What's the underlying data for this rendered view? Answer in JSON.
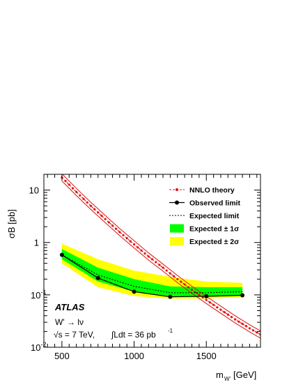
{
  "chart_data": {
    "type": "line",
    "title": "",
    "xlabel": "m_{W'} [GeV]",
    "ylabel": "σB [pb]",
    "xlim": [
      375,
      1875
    ],
    "ylim": [
      0.01,
      20
    ],
    "yscale": "log",
    "xticks": [
      500,
      1000,
      1500
    ],
    "yticks": [
      0.01,
      0.1,
      1,
      10
    ],
    "grid": false,
    "legend_position": "top-right",
    "annotations": {
      "experiment": "ATLAS",
      "process": "W' → lν",
      "energy": "√s = 7 TeV,",
      "lumi": "∫Ldt = 36 pb"
    },
    "series": [
      {
        "name": "NNLO theory",
        "style": "dashed-with-points",
        "color": "#e01010",
        "x": [
          500,
          600,
          700,
          800,
          900,
          1000,
          1100,
          1200,
          1300,
          1400,
          1500,
          1600,
          1700,
          1800,
          1875
        ],
        "values": [
          17.5,
          9.2,
          5.0,
          2.8,
          1.58,
          0.92,
          0.54,
          0.33,
          0.2,
          0.125,
          0.08,
          0.052,
          0.034,
          0.023,
          0.0175
        ],
        "band_factor": 1.17
      },
      {
        "name": "Observed limit",
        "style": "solid-with-points",
        "color": "#000000",
        "x": [
          500,
          750,
          1000,
          1250,
          1500,
          1750
        ],
        "values": [
          0.58,
          0.21,
          0.115,
          0.092,
          0.094,
          0.098
        ]
      },
      {
        "name": "Expected  limit",
        "style": "dotted",
        "color": "#000000",
        "x": [
          500,
          750,
          1000,
          1250,
          1500,
          1750
        ],
        "values": [
          0.58,
          0.24,
          0.145,
          0.11,
          0.11,
          0.115
        ]
      },
      {
        "name": "Expected ± 1σ",
        "style": "band",
        "color": "#00ff00",
        "x": [
          500,
          750,
          1000,
          1250,
          1500,
          1750
        ],
        "low": [
          0.48,
          0.18,
          0.115,
          0.095,
          0.092,
          0.096
        ],
        "high": [
          0.75,
          0.33,
          0.2,
          0.145,
          0.14,
          0.14
        ]
      },
      {
        "name": "Expected ± 2σ",
        "style": "band",
        "color": "#ffff00",
        "x": [
          500,
          750,
          1000,
          1250,
          1500,
          1750
        ],
        "low": [
          0.4,
          0.14,
          0.095,
          0.085,
          0.085,
          0.09
        ],
        "high": [
          0.95,
          0.48,
          0.29,
          0.22,
          0.18,
          0.17
        ]
      }
    ]
  }
}
